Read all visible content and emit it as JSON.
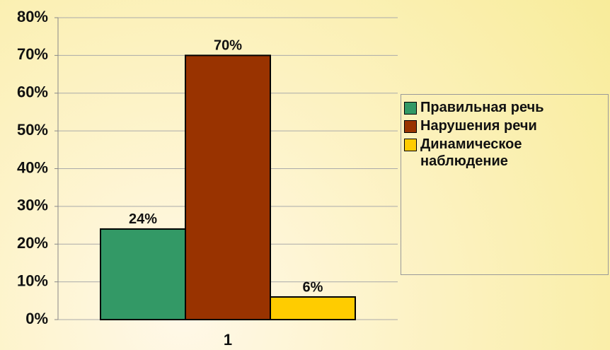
{
  "chart_data": {
    "type": "bar",
    "categories": [
      "1"
    ],
    "series": [
      {
        "name": "Правильная речь",
        "color": "#339966",
        "values": [
          24
        ],
        "value_labels": [
          "24%"
        ]
      },
      {
        "name": "Нарушения речи",
        "color": "#993300",
        "values": [
          70
        ],
        "value_labels": [
          "70%"
        ]
      },
      {
        "name": "Динамическое наблюдение",
        "color": "#ffcc00",
        "values": [
          6
        ],
        "value_labels": [
          "6%"
        ]
      }
    ],
    "ylim": [
      0,
      80
    ],
    "yticks": [
      {
        "value": 0,
        "label": "0%"
      },
      {
        "value": 10,
        "label": "10%"
      },
      {
        "value": 20,
        "label": "20%"
      },
      {
        "value": 30,
        "label": "30%"
      },
      {
        "value": 40,
        "label": "40%"
      },
      {
        "value": 50,
        "label": "50%"
      },
      {
        "value": 60,
        "label": "60%"
      },
      {
        "value": 70,
        "label": "70%"
      },
      {
        "value": 80,
        "label": "80%"
      }
    ],
    "grid": true,
    "legend": "right"
  }
}
